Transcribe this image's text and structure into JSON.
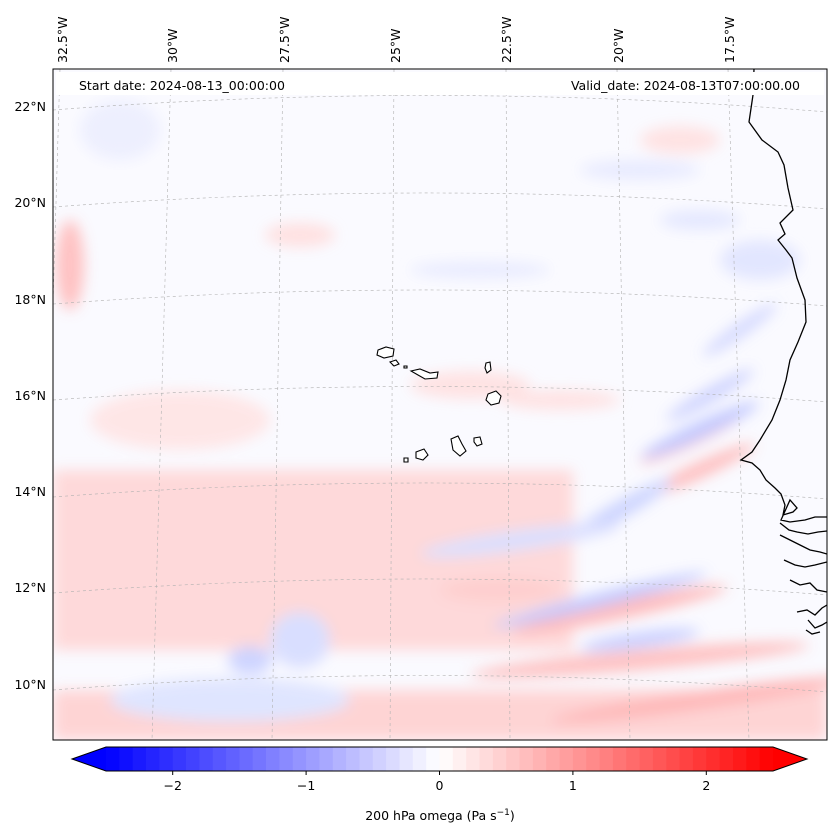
{
  "header": {
    "start_date": "Start date: 2024-08-13_00:00:00",
    "valid_date": "Valid_date: 2024-08-13T07:00:00.00"
  },
  "map": {
    "projection": "conic",
    "lon_labels": [
      {
        "lon": -32.5,
        "text": "32.5°W"
      },
      {
        "lon": -30.0,
        "text": "30°W"
      },
      {
        "lon": -27.5,
        "text": "27.5°W"
      },
      {
        "lon": -25.0,
        "text": "25°W"
      },
      {
        "lon": -22.5,
        "text": "22.5°W"
      },
      {
        "lon": -20.0,
        "text": "20°W"
      },
      {
        "lon": -17.5,
        "text": "17.5°W"
      }
    ],
    "lat_labels": [
      {
        "lat": 22,
        "text": "22°N"
      },
      {
        "lat": 20,
        "text": "20°N"
      },
      {
        "lat": 18,
        "text": "18°N"
      },
      {
        "lat": 16,
        "text": "16°N"
      },
      {
        "lat": 14,
        "text": "14°N"
      },
      {
        "lat": 12,
        "text": "12°N"
      },
      {
        "lat": 10,
        "text": "10°N"
      }
    ],
    "gridlines": true,
    "field": "200 hPa omega",
    "islands": "Cabo Verde",
    "coast": "West Africa"
  },
  "colorbar": {
    "colormap": "bwr",
    "vmin": -2.5,
    "vmax": 2.5,
    "extend": "both",
    "ticks": [
      {
        "value": -2,
        "text": "−2"
      },
      {
        "value": -1,
        "text": "−1"
      },
      {
        "value": 0,
        "text": "0"
      },
      {
        "value": 1,
        "text": "1"
      },
      {
        "value": 2,
        "text": "2"
      }
    ],
    "label_main": "200 hPa omega (Pa s",
    "label_sup": "−1",
    "label_end": ")"
  },
  "colors": {
    "negative": "#0000ff",
    "neutral": "#ffffff",
    "positive": "#ff0000",
    "coast": "#000000",
    "grid": "#b0b0b0"
  }
}
